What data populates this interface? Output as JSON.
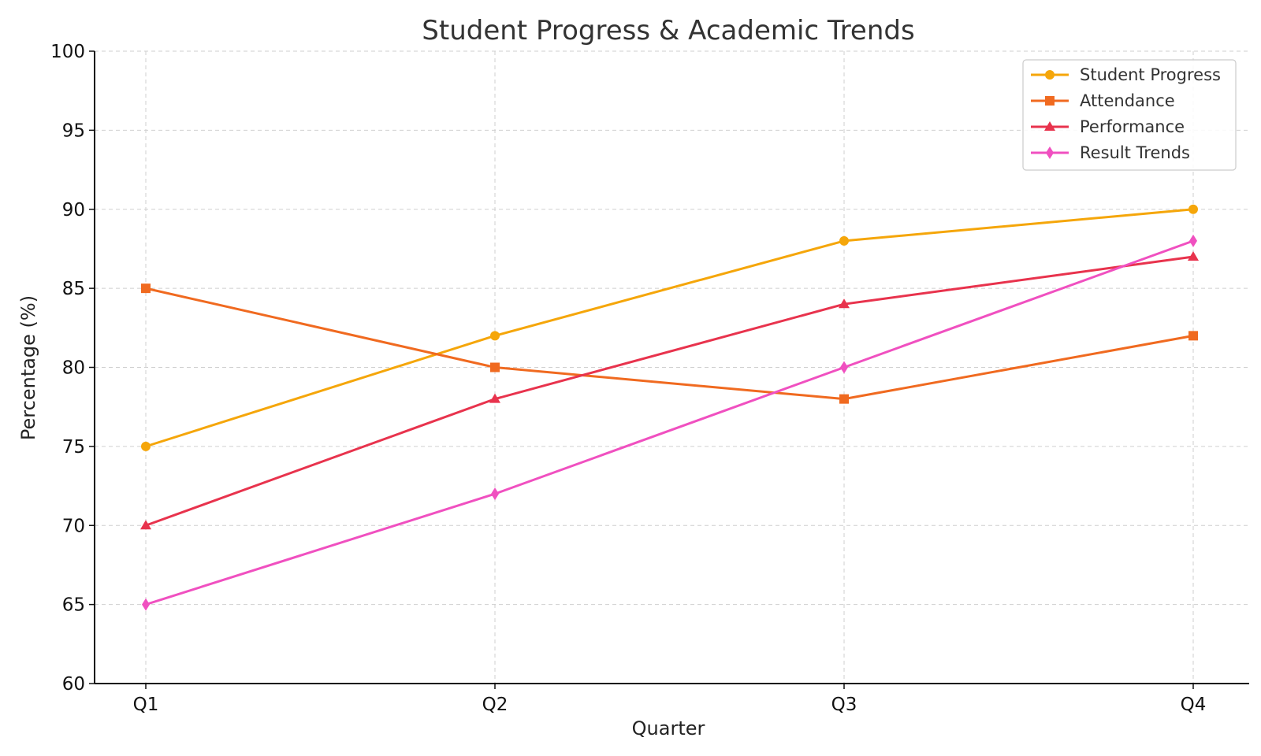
{
  "chart_data": {
    "type": "line",
    "title": "Student Progress & Academic Trends",
    "xlabel": "Quarter",
    "ylabel": "Percentage (%)",
    "categories": [
      "Q1",
      "Q2",
      "Q3",
      "Q4"
    ],
    "ylim": [
      60,
      100
    ],
    "yticks": [
      "60",
      "65",
      "70",
      "75",
      "80",
      "85",
      "90",
      "95",
      "100"
    ],
    "grid": true,
    "legend_position": "top-right",
    "series": [
      {
        "name": "Student Progress",
        "values": [
          75,
          82,
          88,
          90
        ],
        "color": "#f5a60a",
        "marker": "circle"
      },
      {
        "name": "Attendance",
        "values": [
          85,
          80,
          78,
          82
        ],
        "color": "#f06a20",
        "marker": "square"
      },
      {
        "name": "Performance",
        "values": [
          70,
          78,
          84,
          87
        ],
        "color": "#e8334d",
        "marker": "triangle"
      },
      {
        "name": "Result Trends",
        "values": [
          65,
          72,
          80,
          88
        ],
        "color": "#f050c0",
        "marker": "diamond"
      }
    ]
  }
}
